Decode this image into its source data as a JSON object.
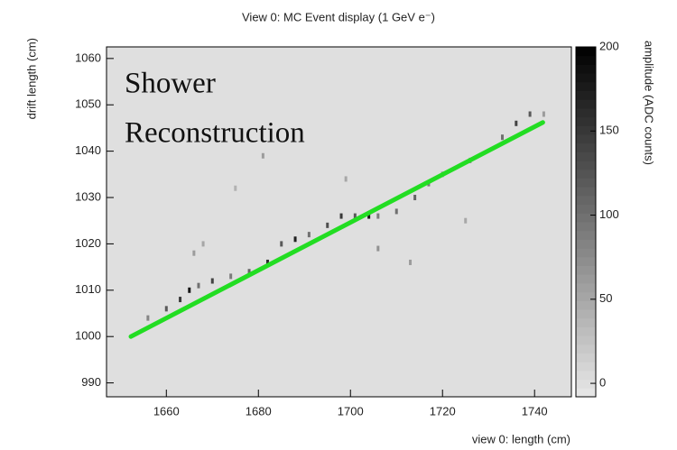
{
  "chart_data": {
    "type": "event-display",
    "title": "View 0: MC Event display (1 GeV e⁻)",
    "xlabel": "view 0: length (cm)",
    "ylabel": "drift length (cm)",
    "zlabel": "amplitude (ADC counts)",
    "annotation": [
      "Shower",
      "Reconstruction"
    ],
    "xlim": [
      1647,
      1748
    ],
    "ylim": [
      987,
      1062.5
    ],
    "xticks": [
      1660,
      1680,
      1700,
      1720,
      1740
    ],
    "yticks": [
      990,
      1000,
      1010,
      1020,
      1030,
      1040,
      1050,
      1060
    ],
    "zlim": [
      -8,
      200
    ],
    "zticks": [
      0,
      50,
      100,
      150,
      200
    ],
    "hits": {
      "x": [
        1656,
        1660,
        1663,
        1665,
        1667,
        1670,
        1674,
        1678,
        1682,
        1685,
        1688,
        1691,
        1695,
        1698,
        1701,
        1704,
        1706,
        1710,
        1714,
        1717,
        1720,
        1726,
        1733,
        1736,
        1739,
        1742,
        1666,
        1668,
        1681,
        1699,
        1706,
        1713,
        1725,
        1675
      ],
      "y": [
        1004,
        1006,
        1008,
        1010,
        1011,
        1012,
        1013,
        1014,
        1016,
        1020,
        1021,
        1022,
        1024,
        1026,
        1026,
        1026,
        1026,
        1027,
        1030,
        1033,
        1035,
        1038,
        1043,
        1046,
        1048,
        1048,
        1018,
        1020,
        1039,
        1034,
        1019,
        1016,
        1025,
        1032
      ],
      "z": [
        80,
        120,
        150,
        180,
        100,
        140,
        90,
        110,
        160,
        120,
        170,
        100,
        130,
        150,
        120,
        180,
        90,
        100,
        110,
        90,
        70,
        80,
        100,
        140,
        120,
        60,
        60,
        50,
        60,
        50,
        70,
        60,
        50,
        40
      ]
    },
    "series": [
      {
        "color": "#22dd22",
        "x": [
          1652.3,
          1741.8
        ],
        "y": [
          1000,
          1046.2
        ]
      }
    ]
  }
}
